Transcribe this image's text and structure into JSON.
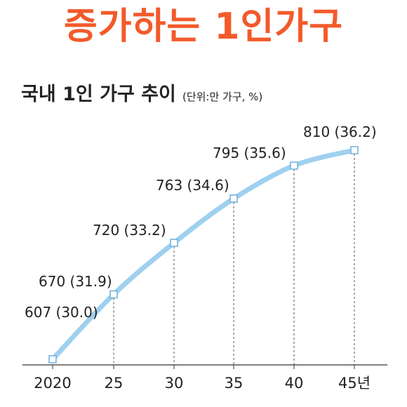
{
  "headline": "증가하는 1인가구",
  "colors": {
    "headline": "#f35a2b",
    "line": "#9fd0ef",
    "marker_stroke": "#6bb0dd",
    "text": "#222222"
  },
  "chart_data": {
    "type": "line",
    "title": "국내 1인 가구 추이",
    "unit": "(단위:만 가구, %)",
    "x": [
      "2020",
      "25",
      "30",
      "35",
      "40",
      "45년"
    ],
    "series": [
      {
        "values": [
          607,
          670,
          720,
          763,
          795,
          810
        ],
        "labels": [
          "607 (30.0)",
          "670 (31.9)",
          "720 (33.2)",
          "763 (34.6)",
          "795 (35.6)",
          "810 (36.2)"
        ]
      }
    ],
    "share_percent": [
      30.0,
      31.9,
      33.2,
      34.6,
      35.6,
      36.2
    ],
    "grid": false,
    "legend": "none"
  }
}
